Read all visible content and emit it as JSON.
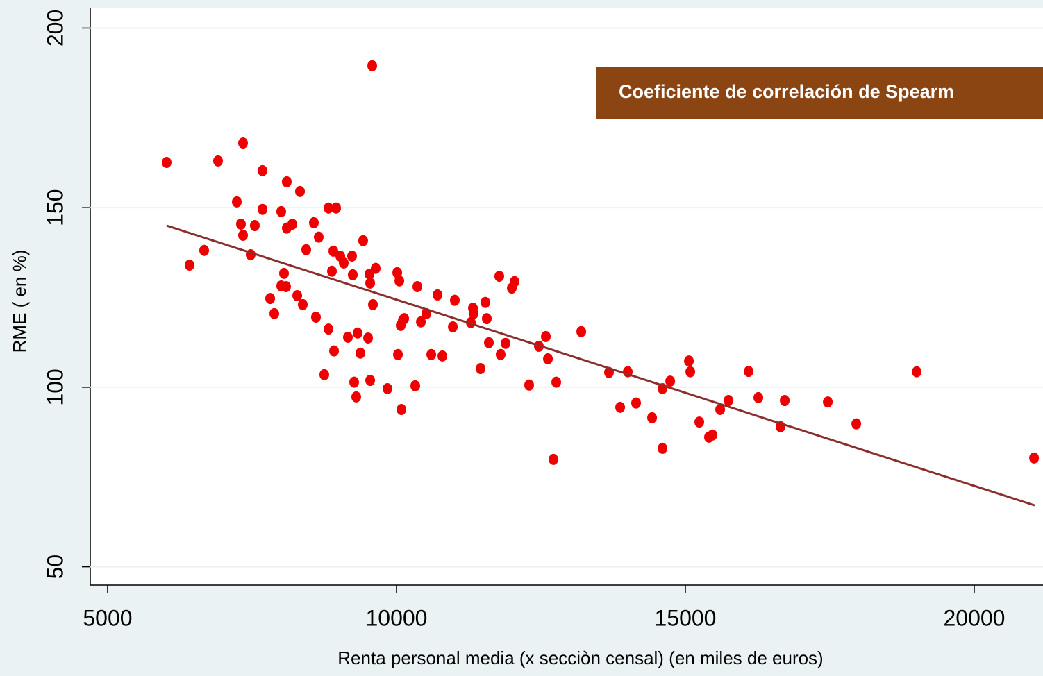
{
  "chart_data": {
    "type": "scatter",
    "xlabel": "Renta personal media (x secciòn censal) (en miles de euros)",
    "ylabel": "RME ( en %)",
    "annotation": "Coeficiente de correlación de Spearm",
    "xlim": [
      4700,
      21190
    ],
    "ylim": [
      44.9,
      205.5
    ],
    "xticks": [
      5000,
      10000,
      15000,
      20000
    ],
    "yticks": [
      50,
      100,
      150,
      200
    ],
    "grid": true,
    "series": [
      {
        "color": "#ee0000",
        "x": [
          6022,
          6418,
          6671,
          6911,
          7236,
          7308,
          7344,
          7344,
          7476,
          7548,
          7681,
          7681,
          7813,
          7885,
          8005,
          8005,
          8053,
          8089,
          8101,
          8101,
          8197,
          8282,
          8330,
          8378,
          8438,
          8570,
          8606,
          8654,
          8750,
          8823,
          8823,
          8883,
          8907,
          8919,
          8955,
          9027,
          9087,
          9159,
          9231,
          9243,
          9267,
          9303,
          9327,
          9375,
          9423,
          9508,
          9532,
          9544,
          9544,
          9580,
          9592,
          9640,
          9844,
          10013,
          10025,
          10049,
          10073,
          10085,
          10109,
          10133,
          10325,
          10361,
          10422,
          10518,
          10602,
          10710,
          10794,
          10975,
          11010,
          11287,
          11323,
          11335,
          11455,
          11539,
          11563,
          11599,
          11779,
          11803,
          11888,
          11996,
          12044,
          12296,
          12464,
          12585,
          12621,
          12717,
          12765,
          13198,
          13678,
          13871,
          14003,
          14147,
          14424,
          14604,
          14604,
          14737,
          15061,
          15085,
          15241,
          15409,
          15469,
          15602,
          15746,
          16095,
          16263,
          16647,
          16720,
          17465,
          17958,
          19004,
          21035
        ],
        "values": [
          162.6,
          134.0,
          138.1,
          163.0,
          151.6,
          145.4,
          168.0,
          142.3,
          136.9,
          145.0,
          160.3,
          149.5,
          124.7,
          120.5,
          148.9,
          128.2,
          131.7,
          128.0,
          157.2,
          144.3,
          145.4,
          125.5,
          154.5,
          123.0,
          138.3,
          145.8,
          119.5,
          141.8,
          103.5,
          149.9,
          116.2,
          132.3,
          137.9,
          110.1,
          149.9,
          136.5,
          134.6,
          113.9,
          136.5,
          131.3,
          101.4,
          97.3,
          115.1,
          109.5,
          140.8,
          113.7,
          131.5,
          129.0,
          101.9,
          189.5,
          123.0,
          133.1,
          99.6,
          131.9,
          109.1,
          129.6,
          117.2,
          93.8,
          118.6,
          119.1,
          100.4,
          128.0,
          118.2,
          120.5,
          109.1,
          125.7,
          108.7,
          116.8,
          124.2,
          118.0,
          122.0,
          120.5,
          105.2,
          123.6,
          119.1,
          112.4,
          130.9,
          109.1,
          112.2,
          127.6,
          129.4,
          100.6,
          111.4,
          114.1,
          107.9,
          79.9,
          101.4,
          115.5,
          104.1,
          94.4,
          104.3,
          95.6,
          91.5,
          83.0,
          99.6,
          101.7,
          107.3,
          104.3,
          90.3,
          86.1,
          86.7,
          93.8,
          96.3,
          104.4,
          97.1,
          89.0,
          96.3,
          95.9,
          89.8,
          104.3,
          80.3
        ]
      }
    ],
    "fit_line": {
      "color": "#8b2e2e",
      "x": [
        6022,
        21046
      ],
      "y": [
        145.0,
        67.1
      ]
    },
    "annotation_color": "#8b4513"
  }
}
